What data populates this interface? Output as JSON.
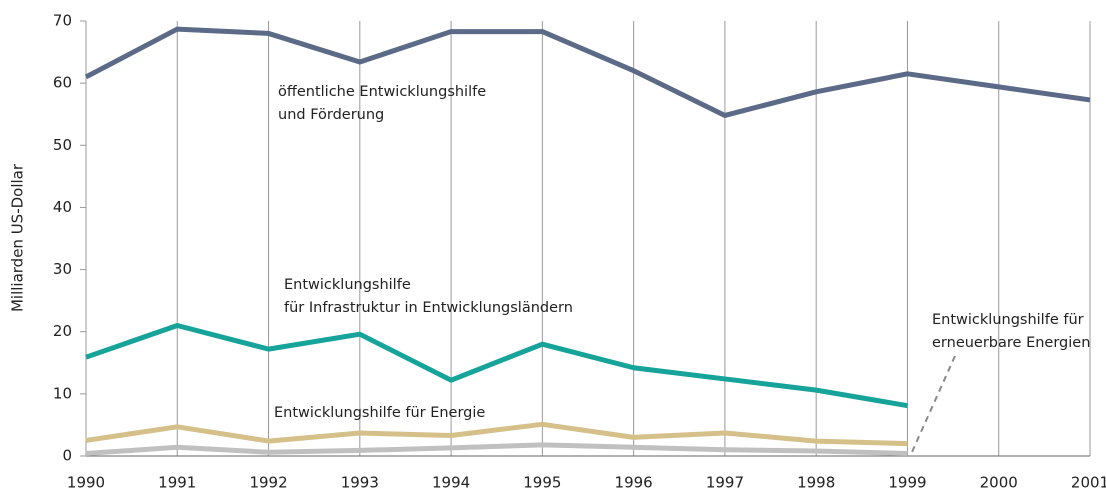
{
  "chart_data": {
    "type": "line",
    "y_label": "Milliarden US-Dollar",
    "x": [
      1990,
      1991,
      1992,
      1993,
      1994,
      1995,
      1996,
      1997,
      1998,
      1999,
      2000,
      2001
    ],
    "xlim": [
      1990,
      2001
    ],
    "xticks": [
      1990,
      1991,
      1992,
      1993,
      1994,
      1995,
      1996,
      1997,
      1998,
      1999,
      2000,
      2001
    ],
    "ylim": [
      0,
      70
    ],
    "yticks": [
      0,
      10,
      20,
      30,
      40,
      50,
      60,
      70
    ],
    "grid": "x",
    "series": [
      {
        "color": "#5a6a87",
        "values": [
          61,
          68.7,
          68,
          63.4,
          68.3,
          68.3,
          62,
          54.8,
          58.6,
          61.5,
          59.4,
          57.3
        ]
      },
      {
        "color": "#16a39a",
        "values": [
          15.9,
          21,
          17.2,
          19.6,
          12.2,
          18,
          14.2,
          12.4,
          10.6,
          8.1,
          null,
          null
        ]
      },
      {
        "color": "#d6c08a",
        "values": [
          2.5,
          4.7,
          2.4,
          3.7,
          3.3,
          5.1,
          3.0,
          3.7,
          2.4,
          2.0,
          null,
          null
        ]
      },
      {
        "color": "#c0c0c0",
        "values": [
          0.4,
          1.4,
          0.6,
          0.9,
          1.3,
          1.8,
          1.4,
          1.0,
          0.8,
          0.4,
          null,
          null
        ]
      }
    ],
    "annotations": [
      {
        "lines": [
          "öffentliche Entwicklungshilfe",
          "und Förderung"
        ]
      },
      {
        "lines": [
          "Entwicklungshilfe",
          "für Infrastruktur in Entwicklungsländern"
        ]
      },
      {
        "lines": [
          "Entwicklungshilfe für Energie"
        ]
      },
      {
        "lines": [
          "Entwicklungshilfe für",
          "erneuerbare Energien"
        ]
      }
    ]
  }
}
